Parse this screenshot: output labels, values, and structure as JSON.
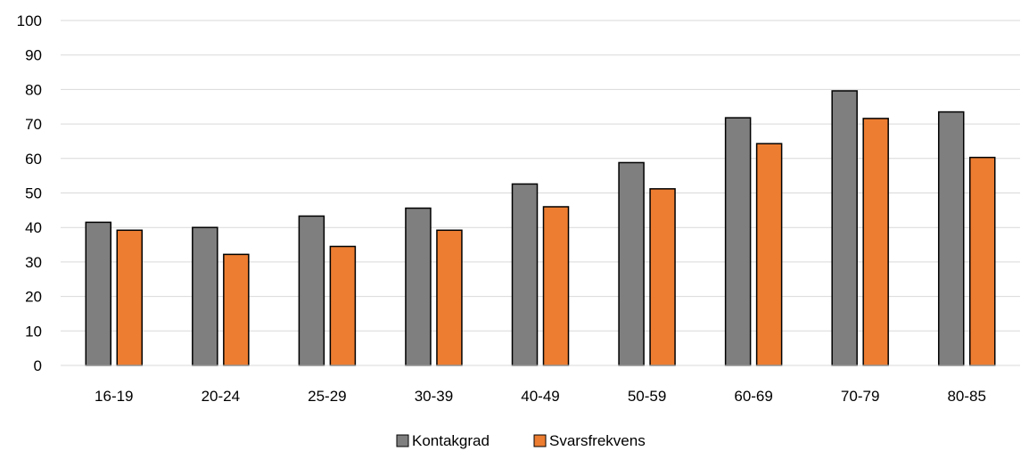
{
  "chart_data": {
    "type": "bar",
    "categories": [
      "16-19",
      "20-24",
      "25-29",
      "30-39",
      "40-49",
      "50-59",
      "60-69",
      "70-79",
      "80-85"
    ],
    "series": [
      {
        "name": "Kontakgrad",
        "color": "#7f7f7f",
        "values": [
          41.5,
          40,
          43.3,
          45.6,
          52.6,
          58.8,
          71.8,
          79.6,
          73.5
        ]
      },
      {
        "name": "Svarsfrekvens",
        "color": "#ed7d31",
        "values": [
          39.2,
          32.2,
          34.5,
          39.2,
          46,
          51.2,
          64.3,
          71.6,
          60.3
        ]
      }
    ],
    "yticks": [
      0,
      10,
      20,
      30,
      40,
      50,
      60,
      70,
      80,
      90,
      100
    ],
    "ylim": [
      0,
      100
    ],
    "grid": true,
    "legend_position": "bottom-center",
    "title": "",
    "xlabel": "",
    "ylabel": ""
  }
}
